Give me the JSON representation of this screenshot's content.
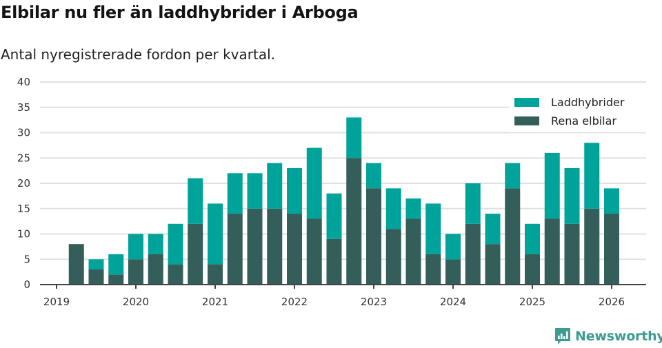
{
  "header": {
    "title": "Elbilar nu fler än laddhybrider i Arboga",
    "subtitle": "Antal nyregistrerade fordon per kvartal."
  },
  "legend": {
    "items": [
      {
        "label": "Laddhybrider",
        "color": "#00a39a"
      },
      {
        "label": "Rena elbilar",
        "color": "#335e5a"
      }
    ]
  },
  "branding": {
    "logo_text": "Newsworthy",
    "logo_icon": "bar-chart-speech-bubble-icon",
    "color": "#3d9c8f"
  },
  "chart_data": {
    "type": "bar",
    "stacked": true,
    "title": "Elbilar nu fler än laddhybrider i Arboga",
    "subtitle": "Antal nyregistrerade fordon per kvartal.",
    "xlabel": "",
    "ylabel": "",
    "ylim": [
      0,
      40
    ],
    "yticks": [
      0,
      5,
      10,
      15,
      20,
      25,
      30,
      35,
      40
    ],
    "xticks": [
      "2019",
      "2020",
      "2021",
      "2022",
      "2023",
      "2024",
      "2025",
      "2026"
    ],
    "grid": true,
    "legend_position": "top-right",
    "categories": [
      "2019 Q1",
      "2019 Q2",
      "2019 Q3",
      "2019 Q4",
      "2020 Q1",
      "2020 Q2",
      "2020 Q3",
      "2020 Q4",
      "2021 Q1",
      "2021 Q2",
      "2021 Q3",
      "2021 Q4",
      "2022 Q1",
      "2022 Q2",
      "2022 Q3",
      "2022 Q4",
      "2023 Q1",
      "2023 Q2",
      "2023 Q3",
      "2023 Q4",
      "2024 Q1",
      "2024 Q2",
      "2024 Q3",
      "2024 Q4",
      "2025 Q1",
      "2025 Q2",
      "2025 Q3",
      "2025 Q4",
      "2026 Q1"
    ],
    "series": [
      {
        "name": "Rena elbilar",
        "color": "#335e5a",
        "values": [
          0,
          8,
          3,
          2,
          5,
          6,
          4,
          12,
          4,
          14,
          15,
          15,
          14,
          13,
          9,
          25,
          19,
          11,
          13,
          6,
          5,
          12,
          8,
          19,
          6,
          13,
          12,
          15,
          14
        ]
      },
      {
        "name": "Laddhybrider",
        "color": "#00a39a",
        "values": [
          0,
          0,
          2,
          4,
          5,
          4,
          8,
          9,
          12,
          8,
          7,
          9,
          9,
          14,
          9,
          8,
          5,
          8,
          4,
          10,
          5,
          8,
          6,
          5,
          6,
          13,
          11,
          13,
          5
        ]
      }
    ]
  }
}
